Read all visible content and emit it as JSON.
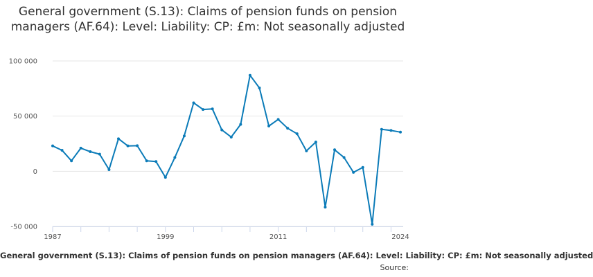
{
  "chart_data": {
    "type": "line",
    "title": "General government (S.13): Claims of pension funds on pension managers (AF.64): Level: Liability: CP: £m: Not seasonally adjusted",
    "series": [
      {
        "name": "General government (S.13): Claims of pension funds on pension managers (AF.64): Level: Liability: CP: £m: Not seasonally adjusted",
        "color": "#0b7bb8",
        "values": [
          {
            "x": 1987,
            "y": 23000
          },
          {
            "x": 1988,
            "y": 19000
          },
          {
            "x": 1989,
            "y": 9500
          },
          {
            "x": 1990,
            "y": 21000
          },
          {
            "x": 1991,
            "y": 17800
          },
          {
            "x": 1992,
            "y": 15500
          },
          {
            "x": 1993,
            "y": 1500
          },
          {
            "x": 1994,
            "y": 29500
          },
          {
            "x": 1995,
            "y": 23000
          },
          {
            "x": 1996,
            "y": 23200
          },
          {
            "x": 1997,
            "y": 9500
          },
          {
            "x": 1998,
            "y": 8800
          },
          {
            "x": 1999,
            "y": -5500
          },
          {
            "x": 2000,
            "y": 12500
          },
          {
            "x": 2001,
            "y": 32000
          },
          {
            "x": 2002,
            "y": 62000
          },
          {
            "x": 2003,
            "y": 56000
          },
          {
            "x": 2004,
            "y": 56500
          },
          {
            "x": 2005,
            "y": 37500
          },
          {
            "x": 2006,
            "y": 31000
          },
          {
            "x": 2007,
            "y": 42500
          },
          {
            "x": 2008,
            "y": 87000
          },
          {
            "x": 2009,
            "y": 75500
          },
          {
            "x": 2010,
            "y": 41000
          },
          {
            "x": 2011,
            "y": 47000
          },
          {
            "x": 2012,
            "y": 39000
          },
          {
            "x": 2013,
            "y": 34000
          },
          {
            "x": 2014,
            "y": 18500
          },
          {
            "x": 2015,
            "y": 26500
          },
          {
            "x": 2016,
            "y": -32500
          },
          {
            "x": 2017,
            "y": 19500
          },
          {
            "x": 2018,
            "y": 12500
          },
          {
            "x": 2019,
            "y": -1000
          },
          {
            "x": 2020,
            "y": 3500
          },
          {
            "x": 2021,
            "y": -48000
          },
          {
            "x": 2022,
            "y": 38000
          },
          {
            "x": 2023,
            "y": 37000
          },
          {
            "x": 2024,
            "y": 35500
          }
        ]
      }
    ],
    "x_ticks": [
      "1987",
      "1999",
      "2011",
      "2024"
    ],
    "y_ticks": [
      "100 000",
      "50 000",
      "0",
      "-50 000"
    ],
    "xlim": [
      1987,
      2024
    ],
    "ylim": [
      -50000,
      100000
    ],
    "grid": "horizontal",
    "footer_series_label": "General government (S.13): Claims of pension funds on pension managers (AF.64): Level: Liability: CP: £m: Not seasonally adjusted",
    "source_label": "Source:"
  }
}
